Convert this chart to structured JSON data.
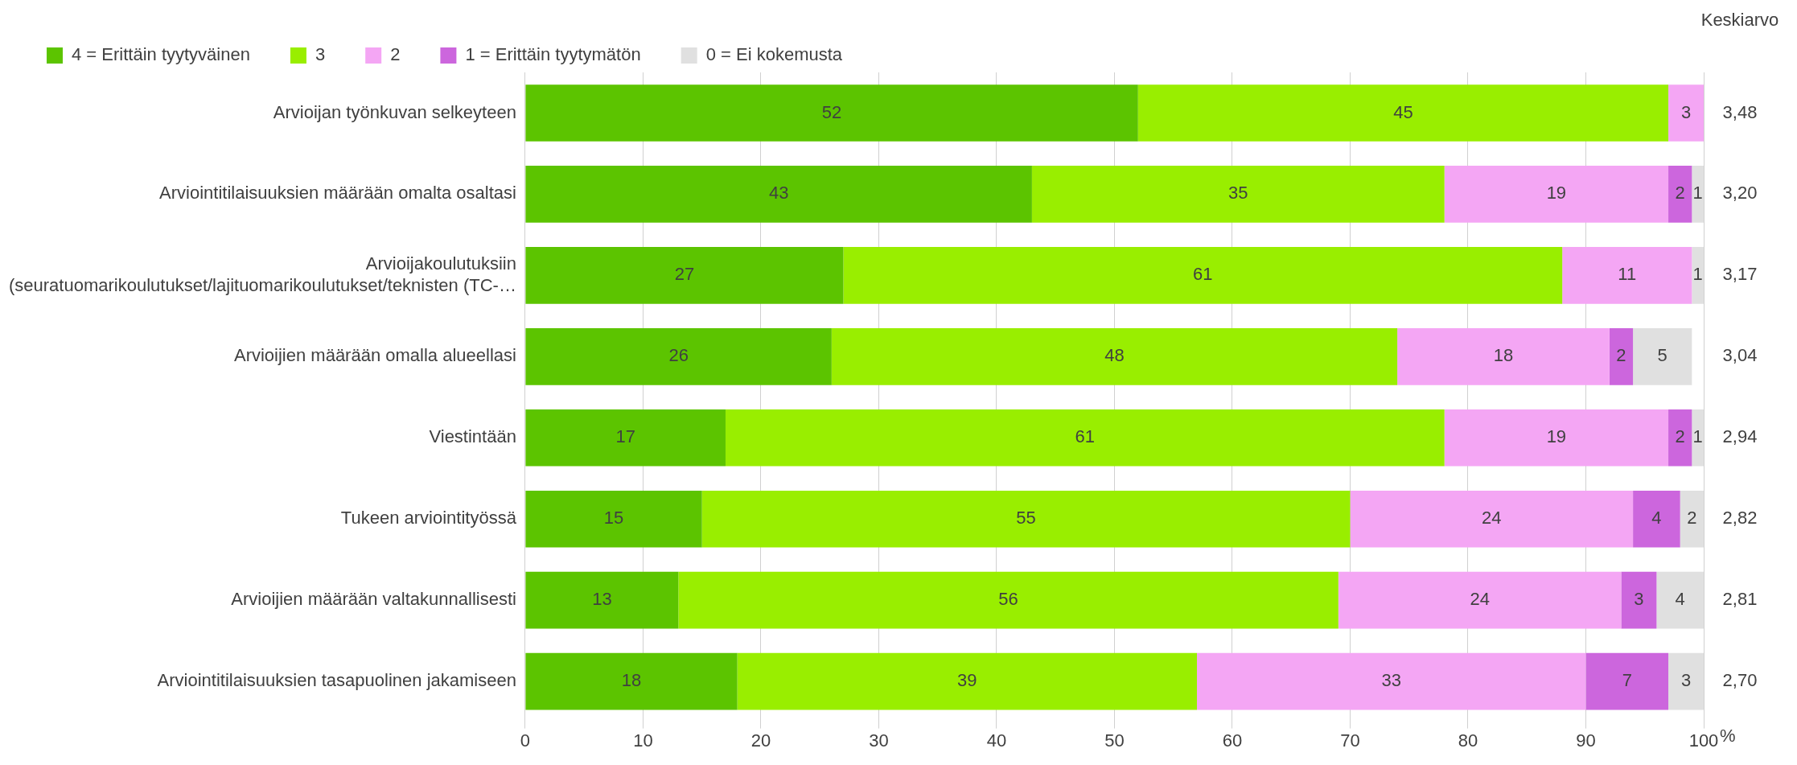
{
  "chart_data": {
    "type": "bar",
    "orientation": "horizontal",
    "stacked": true,
    "data_labels": true,
    "grid": "x",
    "legend": "top",
    "xlabel": "%",
    "categories": [
      "Arvioijan työnkuvan selkeyteen",
      "Arviointitilaisuuksien määrään omalta osaltasi",
      "Arvioijakoulutuksiin\n(seuratuomarikoulutukset/lajituomarikoulutukset/teknisten (TC-…",
      "Arvioijien määrään omalla alueellasi",
      "Viestintään",
      "Tukeen arviointityössä",
      "Arvioijien määrään valtakunnallisesti",
      "Arviointitilaisuuksien tasapuolinen jakamiseen"
    ],
    "series": [
      {
        "name": "4 = Erittäin tyytyväinen",
        "color": "#5cc400",
        "values": [
          52,
          43,
          27,
          26,
          17,
          15,
          13,
          18
        ]
      },
      {
        "name": "3",
        "color": "#99ee00",
        "values": [
          45,
          35,
          61,
          48,
          61,
          55,
          56,
          39
        ]
      },
      {
        "name": "2",
        "color": "#f4a6f4",
        "values": [
          3,
          19,
          11,
          18,
          19,
          24,
          24,
          33
        ]
      },
      {
        "name": "1 = Erittäin tyytymätön",
        "color": "#cc66dd",
        "values": [
          null,
          2,
          null,
          2,
          2,
          4,
          3,
          7
        ]
      },
      {
        "name": "0 = Ei kokemusta",
        "color": "#e0e0e0",
        "values": [
          null,
          1,
          1,
          5,
          1,
          2,
          4,
          3
        ]
      }
    ],
    "xlim": [
      0,
      100
    ],
    "xticks": [
      0,
      10,
      20,
      30,
      40,
      50,
      60,
      70,
      80,
      90,
      100
    ],
    "annotations": [
      "Keskiarvo",
      "3,48",
      "3,20",
      "3,17",
      "3,04",
      "2,94",
      "2,82",
      "2,81",
      "2,70"
    ]
  }
}
